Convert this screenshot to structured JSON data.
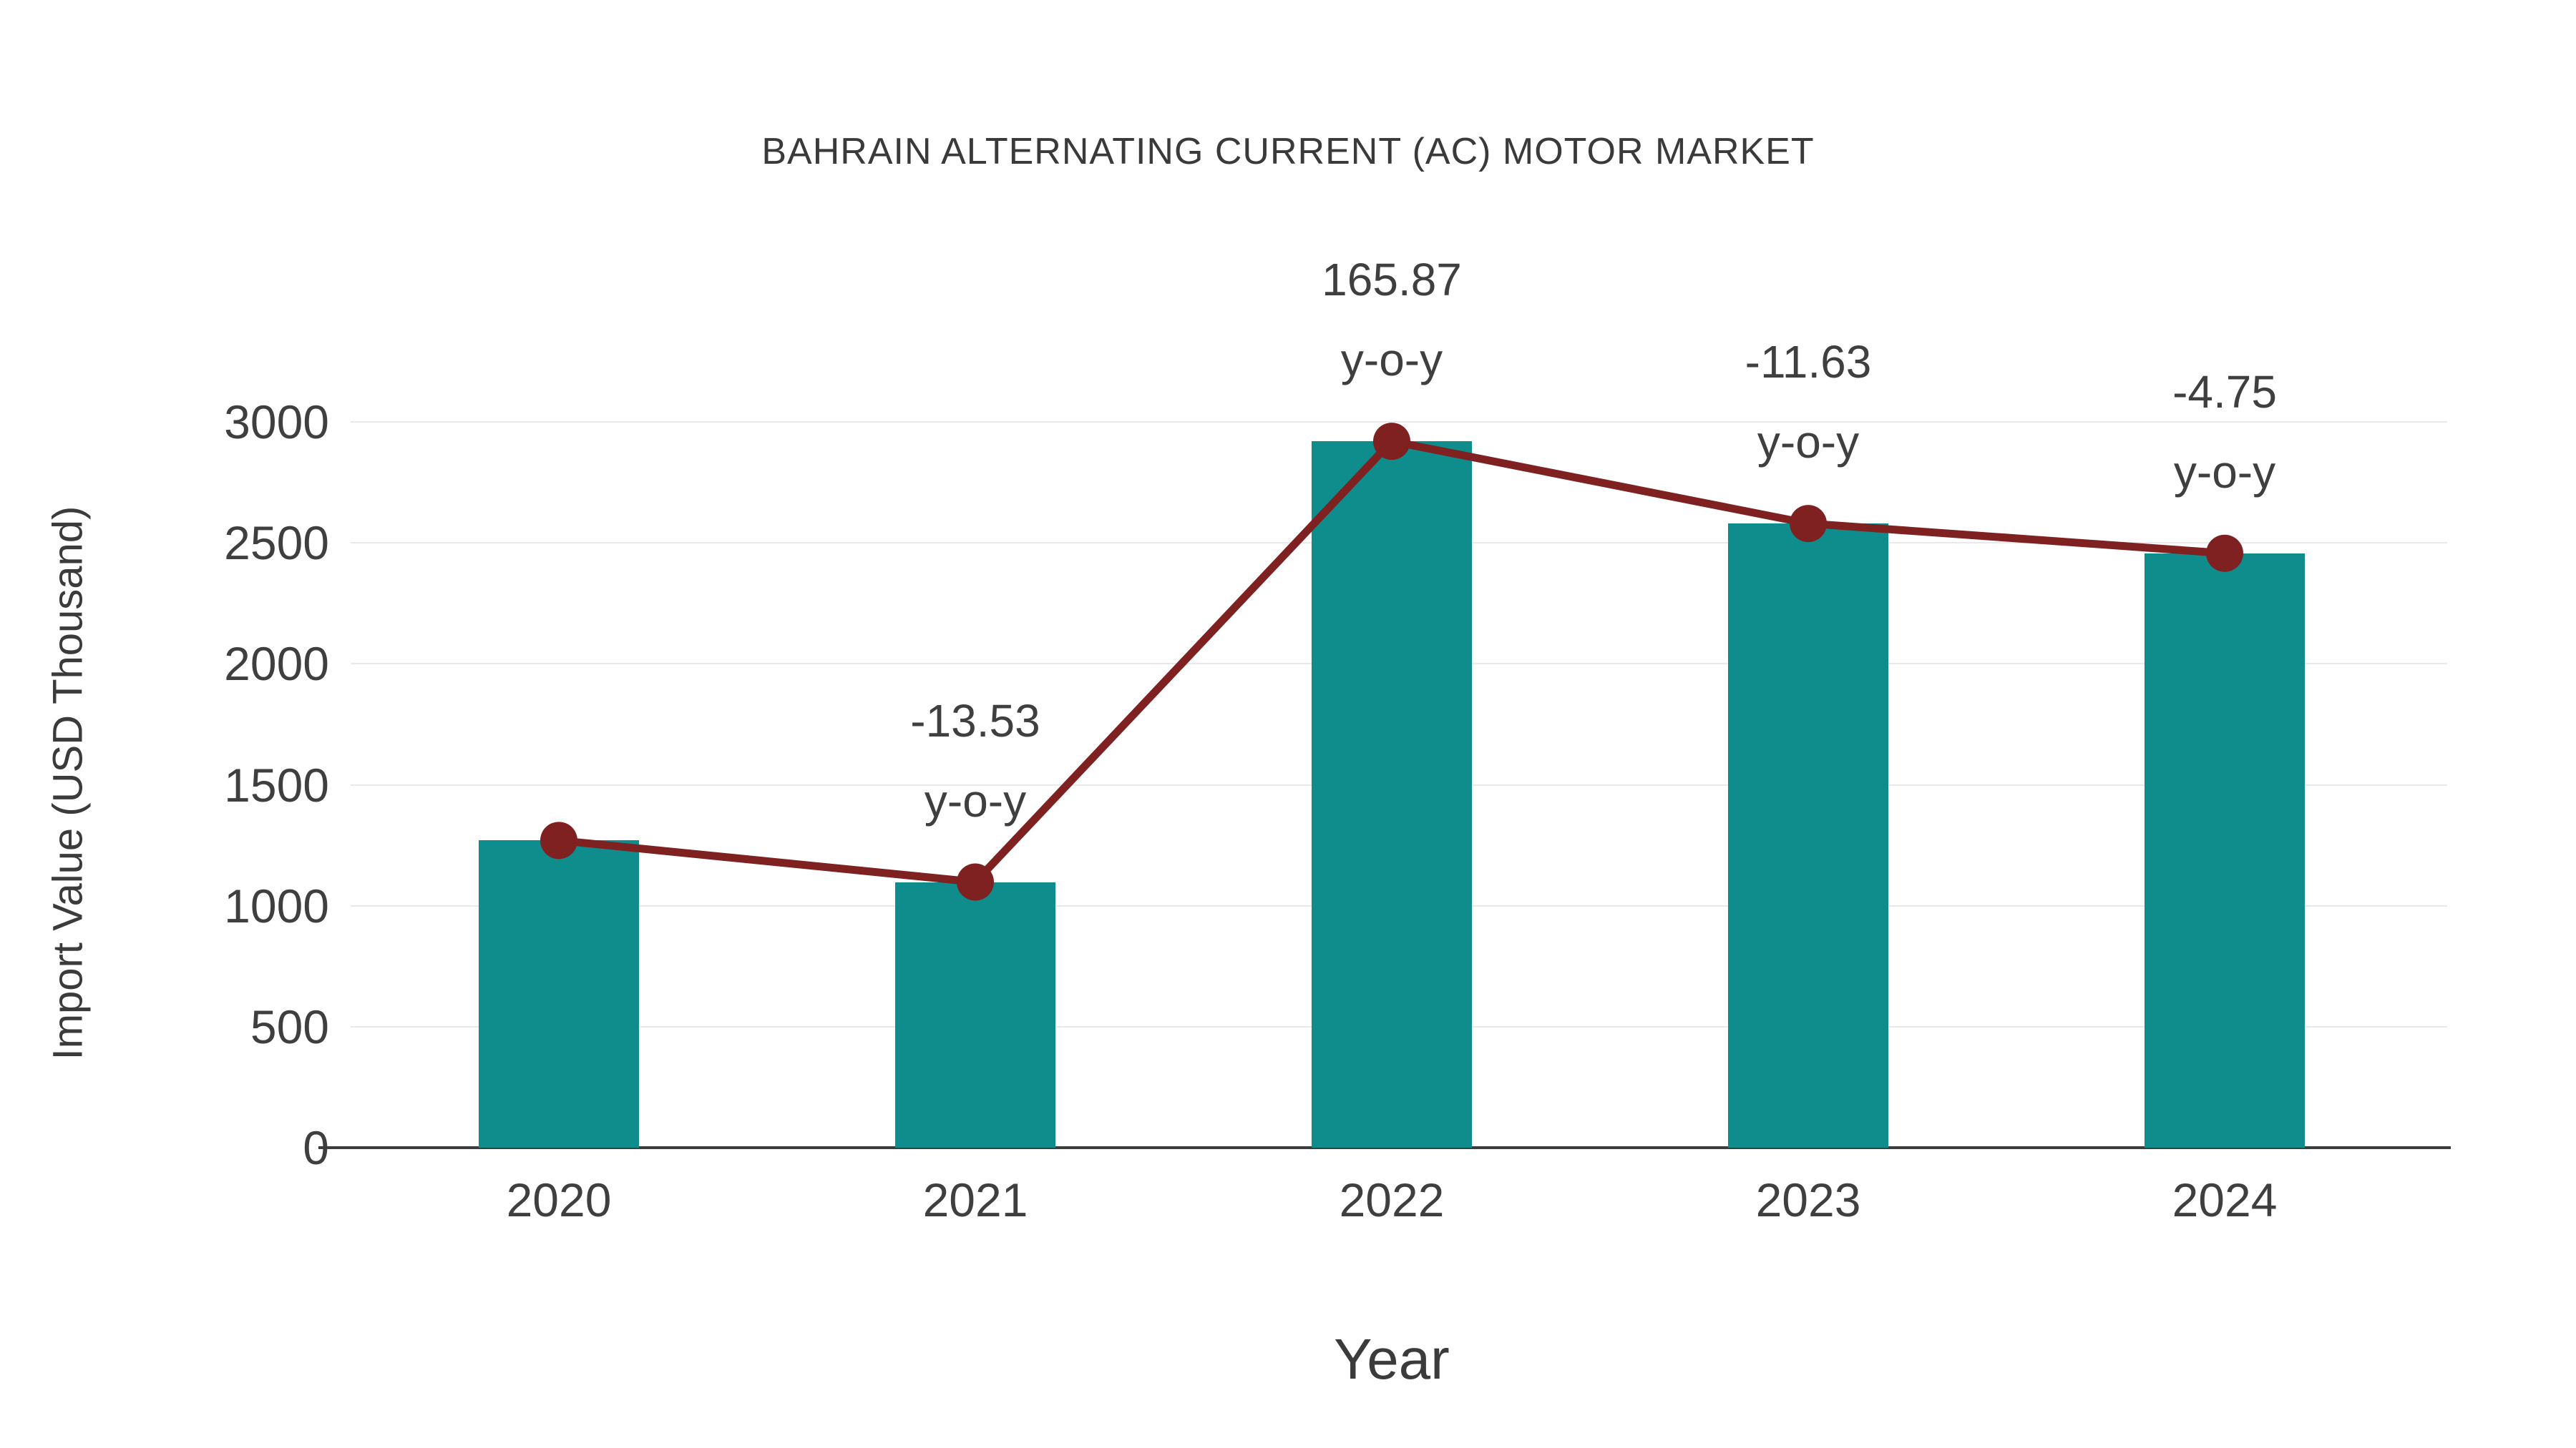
{
  "chart_data": {
    "type": "bar",
    "title": "BAHRAIN ALTERNATING CURRENT (AC) MOTOR MARKET",
    "xlabel": "Year",
    "ylabel": "Import Value (USD Thousand)",
    "categories": [
      "2020",
      "2021",
      "2022",
      "2023",
      "2024"
    ],
    "series": [
      {
        "name": "Import Value (USD Thousand)",
        "type": "bar",
        "color": "#0f8c8c",
        "values": [
          1270,
          1098,
          2920,
          2580,
          2457
        ]
      },
      {
        "name": "Trend line",
        "type": "line",
        "color": "#7f2121",
        "values": [
          1270,
          1098,
          2920,
          2580,
          2457
        ]
      }
    ],
    "annotations": [
      {
        "category": "2021",
        "lines": [
          "-13.53",
          "y-o-y"
        ]
      },
      {
        "category": "2022",
        "lines": [
          "165.87",
          "y-o-y"
        ]
      },
      {
        "category": "2023",
        "lines": [
          "-11.63",
          "y-o-y"
        ]
      },
      {
        "category": "2024",
        "lines": [
          "-4.75",
          "y-o-y"
        ]
      }
    ],
    "ylim": [
      0,
      3000
    ],
    "yticks": [
      0,
      500,
      1000,
      1500,
      2000,
      2500,
      3000
    ],
    "grid": true,
    "legend": "none"
  }
}
